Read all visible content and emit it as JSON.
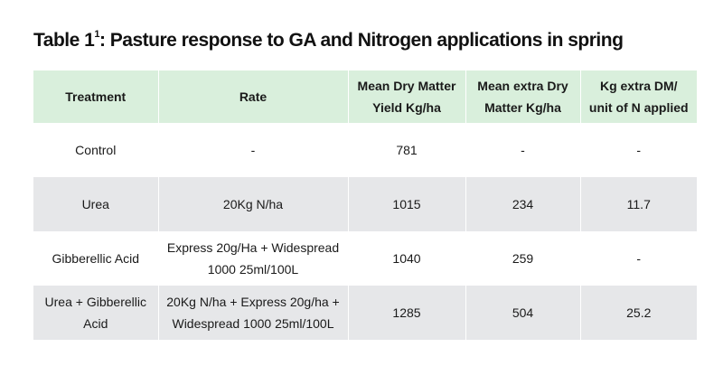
{
  "title": {
    "main": "Table 1",
    "sup": "1",
    "rest": ": Pasture response to GA and Nitrogen applications in spring"
  },
  "table": {
    "headers": [
      [
        "Treatment"
      ],
      [
        "Rate"
      ],
      [
        "Mean Dry Matter",
        "Yield Kg/ha"
      ],
      [
        "Mean extra Dry",
        "Matter Kg/ha"
      ],
      [
        "Kg extra DM/",
        "unit of N applied"
      ]
    ],
    "rows": [
      {
        "treatment": [
          "Control"
        ],
        "rate": [
          "-"
        ],
        "mean_dm": "781",
        "extra_dm": "-",
        "kg_per_n": "-"
      },
      {
        "treatment": [
          "Urea"
        ],
        "rate": [
          "20Kg N/ha"
        ],
        "mean_dm": "1015",
        "extra_dm": "234",
        "kg_per_n": "11.7"
      },
      {
        "treatment": [
          "Gibberellic Acid"
        ],
        "rate": [
          "Express 20g/Ha + Widespread",
          "1000 25ml/100L"
        ],
        "mean_dm": "1040",
        "extra_dm": "259",
        "kg_per_n": "-"
      },
      {
        "treatment": [
          "Urea + Gibberellic",
          "Acid"
        ],
        "rate": [
          "20Kg N/ha + Express 20g/ha +",
          "Widespread 1000 25ml/100L"
        ],
        "mean_dm": "1285",
        "extra_dm": "504",
        "kg_per_n": "25.2"
      }
    ]
  }
}
